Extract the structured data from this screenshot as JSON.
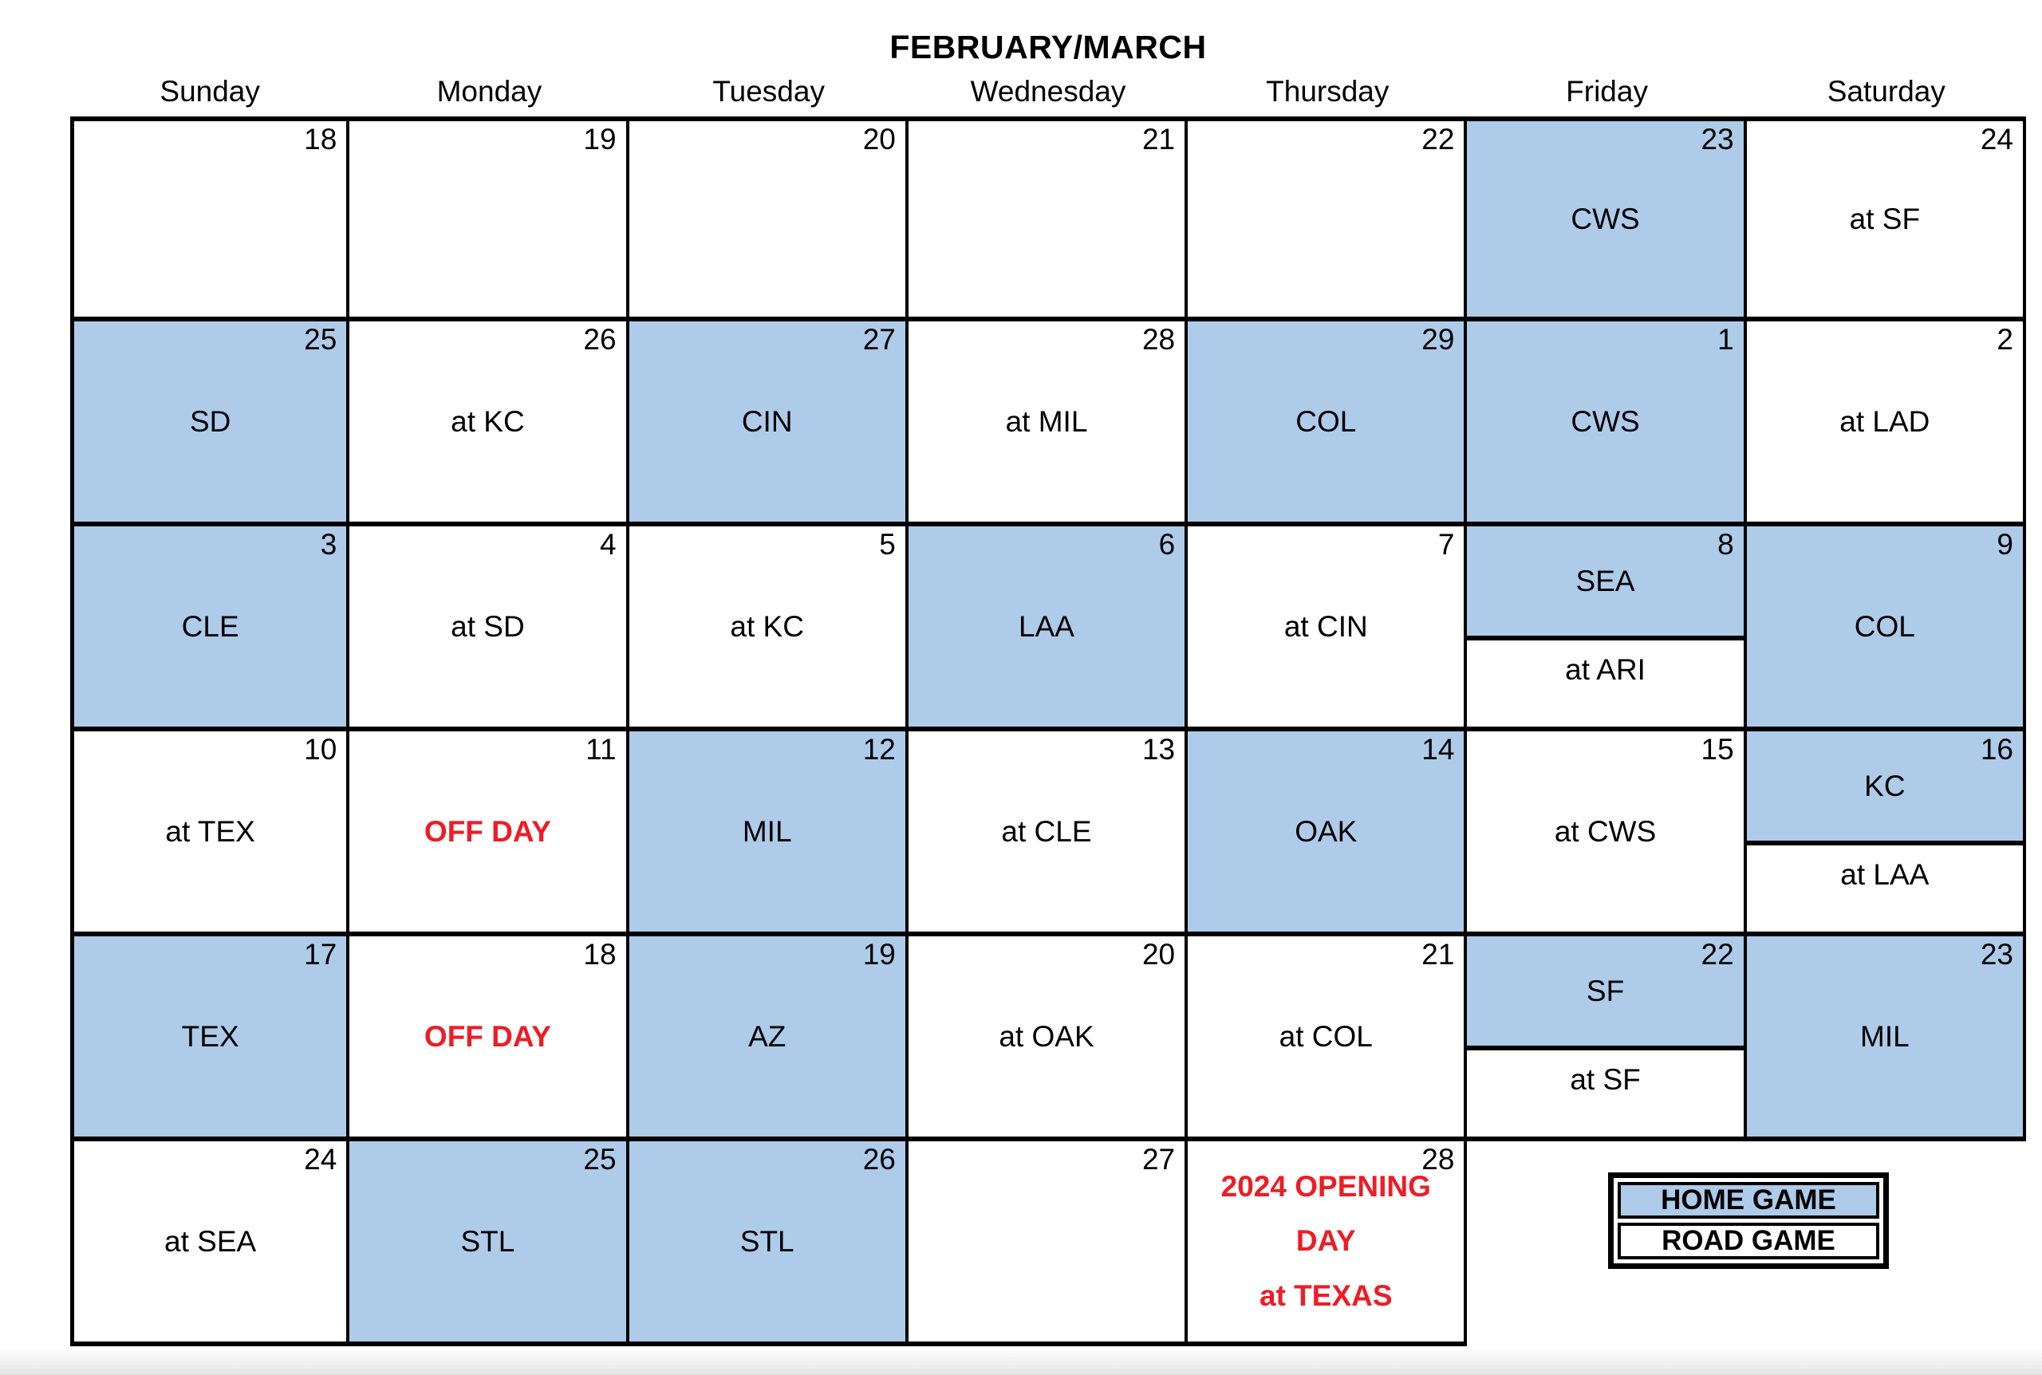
{
  "title": "FEBRUARY/MARCH",
  "weekdays": [
    "Sunday",
    "Monday",
    "Tuesday",
    "Wednesday",
    "Thursday",
    "Friday",
    "Saturday"
  ],
  "colors": {
    "home_blue": "#AECBE9",
    "road_white": "#FFFFFF",
    "red": "#EE1C25",
    "grid_black": "#000000"
  },
  "legend": {
    "home_label": "HOME GAME",
    "road_label": "ROAD GAME"
  },
  "weeks": [
    [
      {
        "day": "18",
        "type": "empty"
      },
      {
        "day": "19",
        "type": "empty"
      },
      {
        "day": "20",
        "type": "empty"
      },
      {
        "day": "21",
        "type": "empty"
      },
      {
        "day": "22",
        "type": "empty"
      },
      {
        "day": "23",
        "type": "home",
        "label": "CWS"
      },
      {
        "day": "24",
        "type": "road",
        "label": "at SF"
      }
    ],
    [
      {
        "day": "25",
        "type": "home",
        "label": "SD"
      },
      {
        "day": "26",
        "type": "road",
        "label": "at KC"
      },
      {
        "day": "27",
        "type": "home",
        "label": "CIN"
      },
      {
        "day": "28",
        "type": "road",
        "label": "at MIL"
      },
      {
        "day": "29",
        "type": "home",
        "label": "COL"
      },
      {
        "day": "1",
        "type": "home",
        "label": "CWS"
      },
      {
        "day": "2",
        "type": "road",
        "label": "at LAD"
      }
    ],
    [
      {
        "day": "3",
        "type": "home",
        "label": "CLE"
      },
      {
        "day": "4",
        "type": "road",
        "label": "at SD"
      },
      {
        "day": "5",
        "type": "road",
        "label": "at KC"
      },
      {
        "day": "6",
        "type": "home",
        "label": "LAA"
      },
      {
        "day": "7",
        "type": "road",
        "label": "at CIN"
      },
      {
        "day": "8",
        "type": "split",
        "top_label": "SEA",
        "bottom_label": "at ARI"
      },
      {
        "day": "9",
        "type": "home",
        "label": "COL"
      }
    ],
    [
      {
        "day": "10",
        "type": "road",
        "label": "at TEX"
      },
      {
        "day": "11",
        "type": "off",
        "label": "OFF DAY"
      },
      {
        "day": "12",
        "type": "home",
        "label": "MIL"
      },
      {
        "day": "13",
        "type": "road",
        "label": "at CLE"
      },
      {
        "day": "14",
        "type": "home",
        "label": "OAK"
      },
      {
        "day": "15",
        "type": "road",
        "label": "at CWS"
      },
      {
        "day": "16",
        "type": "split",
        "top_label": "KC",
        "bottom_label": "at LAA"
      }
    ],
    [
      {
        "day": "17",
        "type": "home",
        "label": "TEX"
      },
      {
        "day": "18",
        "type": "off",
        "label": "OFF DAY"
      },
      {
        "day": "19",
        "type": "home",
        "label": "AZ"
      },
      {
        "day": "20",
        "type": "road",
        "label": "at OAK"
      },
      {
        "day": "21",
        "type": "road",
        "label": "at COL"
      },
      {
        "day": "22",
        "type": "split",
        "top_label": "SF",
        "bottom_label": "at SF"
      },
      {
        "day": "23",
        "type": "home",
        "label": "MIL"
      }
    ],
    [
      {
        "day": "24",
        "type": "road",
        "label": "at SEA"
      },
      {
        "day": "25",
        "type": "home",
        "label": "STL"
      },
      {
        "day": "26",
        "type": "home",
        "label": "STL"
      },
      {
        "day": "27",
        "type": "empty"
      },
      {
        "day": "28",
        "type": "opening",
        "lines": [
          "2024 OPENING DAY",
          "at TEXAS"
        ]
      },
      null,
      null
    ]
  ]
}
